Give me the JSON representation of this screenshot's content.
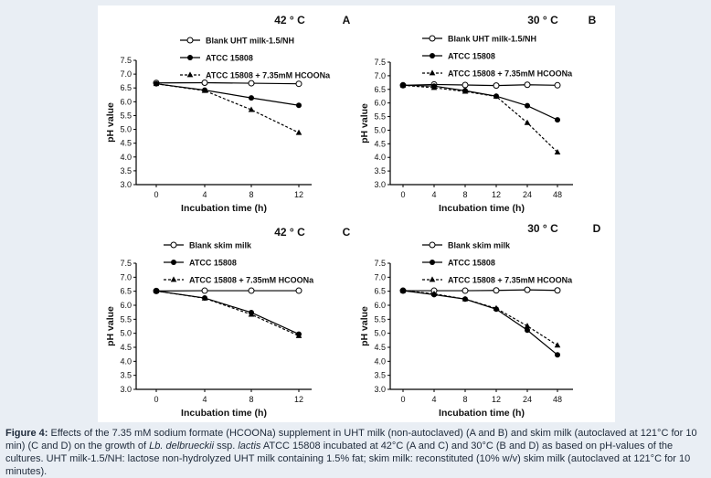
{
  "chart_data": [
    {
      "type": "line",
      "panel": "A",
      "temperature": "42 ° C",
      "categories": [
        "0",
        "4",
        "8",
        "12"
      ],
      "xlabel": "Incubation time (h)",
      "ylabel": "pH value",
      "yticks": [
        "3.0",
        "3.5",
        "4.0",
        "4.5",
        "5.0",
        "5.5",
        "6.0",
        "6.5",
        "7.0",
        "7.5"
      ],
      "ylim": [
        3.0,
        7.5
      ],
      "legend_position": "top",
      "series": [
        {
          "name": "Blank UHT milk-1.5/NH",
          "marker": "open-circle",
          "dashed": false,
          "values": [
            6.68,
            6.69,
            6.67,
            6.65
          ]
        },
        {
          "name": "ATCC 15808",
          "marker": "filled-circle",
          "dashed": false,
          "values": [
            6.65,
            6.42,
            6.14,
            5.87
          ]
        },
        {
          "name": "ATCC 15808 + 7.35mM HCOONa",
          "marker": "triangle",
          "dashed": true,
          "values": [
            6.65,
            6.4,
            5.71,
            4.88
          ]
        }
      ]
    },
    {
      "type": "line",
      "panel": "B",
      "temperature": "30 ° C",
      "categories": [
        "0",
        "4",
        "8",
        "12",
        "24",
        "48"
      ],
      "xlabel": "Incubation time (h)",
      "ylabel": "pH value",
      "yticks": [
        "3.0",
        "3.5",
        "4.0",
        "4.5",
        "5.0",
        "5.5",
        "6.0",
        "6.5",
        "7.0",
        "7.5"
      ],
      "ylim": [
        3.0,
        7.5
      ],
      "legend_position": "top",
      "series": [
        {
          "name": "Blank UHT milk-1.5/NH",
          "marker": "open-circle",
          "dashed": false,
          "values": [
            6.65,
            6.68,
            6.66,
            6.64,
            6.67,
            6.65
          ]
        },
        {
          "name": "ATCC 15808",
          "marker": "filled-circle",
          "dashed": false,
          "values": [
            6.65,
            6.62,
            6.45,
            6.25,
            5.9,
            5.38
          ]
        },
        {
          "name": "ATCC 15808 + 7.35mM HCOONa",
          "marker": "triangle",
          "dashed": true,
          "values": [
            6.65,
            6.56,
            6.42,
            6.24,
            5.27,
            4.19
          ]
        }
      ]
    },
    {
      "type": "line",
      "panel": "C",
      "temperature": "42 ° C",
      "categories": [
        "0",
        "4",
        "8",
        "12"
      ],
      "xlabel": "Incubation time (h)",
      "ylabel": "pH value",
      "yticks": [
        "3.0",
        "3.5",
        "4.0",
        "4.5",
        "5.0",
        "5.5",
        "6.0",
        "6.5",
        "7.0",
        "7.5"
      ],
      "ylim": [
        3.0,
        7.5
      ],
      "legend_position": "top",
      "series": [
        {
          "name": "Blank skim milk",
          "marker": "open-circle",
          "dashed": false,
          "values": [
            6.51,
            6.52,
            6.52,
            6.52
          ]
        },
        {
          "name": "ATCC 15808",
          "marker": "filled-circle",
          "dashed": false,
          "values": [
            6.51,
            6.26,
            5.74,
            4.97
          ]
        },
        {
          "name": "ATCC 15808 + 7.35mM HCOONa",
          "marker": "triangle",
          "dashed": true,
          "values": [
            6.51,
            6.25,
            5.67,
            4.91
          ]
        }
      ]
    },
    {
      "type": "line",
      "panel": "D",
      "temperature": "30 ° C",
      "categories": [
        "0",
        "4",
        "8",
        "12",
        "24",
        "48"
      ],
      "xlabel": "Incubation time (h)",
      "ylabel": "pH value",
      "yticks": [
        "3.0",
        "3.5",
        "4.0",
        "4.5",
        "5.0",
        "5.5",
        "6.0",
        "6.5",
        "7.0",
        "7.5"
      ],
      "ylim": [
        3.0,
        7.5
      ],
      "legend_position": "top",
      "series": [
        {
          "name": "Blank skim milk",
          "marker": "open-circle",
          "dashed": false,
          "values": [
            6.52,
            6.52,
            6.52,
            6.53,
            6.55,
            6.53
          ]
        },
        {
          "name": "ATCC 15808",
          "marker": "filled-circle",
          "dashed": false,
          "values": [
            6.52,
            6.38,
            6.22,
            5.86,
            5.11,
            4.23
          ]
        },
        {
          "name": "ATCC 15808 + 7.35mM HCOONa",
          "marker": "triangle",
          "dashed": true,
          "values": [
            6.52,
            6.41,
            6.22,
            5.89,
            5.26,
            4.57
          ]
        }
      ]
    }
  ],
  "caption": {
    "label": "Figure 4:",
    "text_1": " Effects of the 7.35 mM sodium formate (HCOONa) supplement in UHT milk (non-autoclaved) (A and B) and skim milk (autoclaved at 121°C for 10 min) (C and D) on the growth of ",
    "species": "Lb. delbrueckii",
    "text_2": " ssp. ",
    "subspecies": "lactis",
    "text_3": " ATCC 15808 incubated at 42°C (A and C) and 30°C (B and D) as based on pH-values of the cultures. UHT milk-1.5/NH: lactose non-hydrolyzed UHT milk containing 1.5% fat; skim milk: reconstituted (10% w/v) skim milk (autoclaved at 121°C for 10 minutes)."
  }
}
